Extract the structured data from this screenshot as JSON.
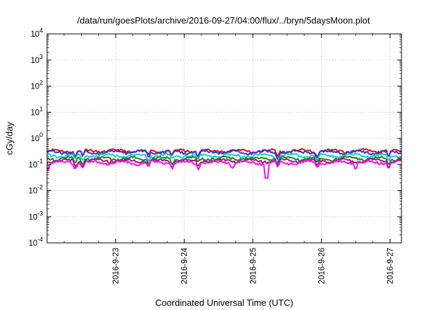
{
  "chart_data": {
    "type": "line",
    "title": "/data/run/goesPlots/archive/2016-09-27/04:00/flux/../bryn/5daysMoon.plot",
    "xlabel": "Coordinated Universal Time (UTC)",
    "ylabel": "cGy/day",
    "yscale": "log",
    "ylim": [
      0.0001,
      10000
    ],
    "xlim": [
      "2016-09-22 00:00",
      "2016-09-27 04:00"
    ],
    "grid": true,
    "x_ticks": [
      "2016-9-23",
      "2016-9-24",
      "2016-9-25",
      "2016-9-26",
      "2016-9-27"
    ],
    "y_ticks": [
      {
        "base": "10",
        "exp": "-4"
      },
      {
        "base": "10",
        "exp": "-3"
      },
      {
        "base": "10",
        "exp": "-2"
      },
      {
        "base": "10",
        "exp": "-1"
      },
      {
        "base": "10",
        "exp": "0"
      },
      {
        "base": "10",
        "exp": "1"
      },
      {
        "base": "10",
        "exp": "2"
      },
      {
        "base": "10",
        "exp": "3"
      },
      {
        "base": "10",
        "exp": "4"
      }
    ],
    "series": [
      {
        "color": "#dd1111",
        "base": 0.33,
        "dips": [
          0.41,
          0.52,
          1.48,
          1.82,
          2.2,
          3.36,
          3.93,
          4.98
        ]
      },
      {
        "color": "#3333dd",
        "base": 0.3,
        "dips": [
          0.41,
          0.52,
          1.48,
          1.82,
          2.2,
          3.36,
          3.93,
          4.98
        ]
      },
      {
        "color": "#11cccc",
        "base": 0.22,
        "dips": [
          0.41,
          0.52,
          1.48,
          1.82,
          2.2,
          3.36,
          3.93,
          4.98
        ]
      },
      {
        "color": "#118811",
        "base": 0.17,
        "dips": [
          0.41,
          0.52,
          1.48,
          1.82,
          2.2,
          3.36,
          3.93,
          4.98
        ]
      },
      {
        "color": "#aa1177",
        "base": 0.14,
        "dips": [
          0.41,
          0.52,
          1.48,
          1.82,
          2.2,
          3.36,
          3.93,
          4.98
        ]
      },
      {
        "color": "#ee11ee",
        "base": 0.12,
        "dips": [
          0.02,
          0.41,
          0.52,
          1.48,
          1.82,
          2.2,
          2.7,
          3.36,
          3.93,
          4.5,
          4.98
        ],
        "deep_dip": {
          "x": 3.2,
          "y": 0.03
        }
      }
    ]
  }
}
